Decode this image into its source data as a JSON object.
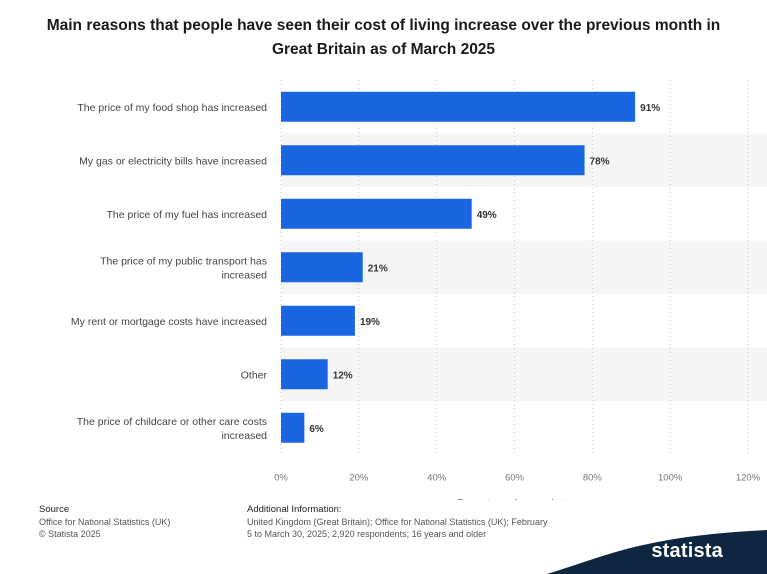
{
  "title": "Main reasons that people have seen their cost of living increase over the previous month in Great Britain as of March 2025",
  "chart_data": {
    "type": "bar",
    "orientation": "horizontal",
    "title": "Main reasons that people have seen their cost of living increase over the previous month in Great Britain as of March 2025",
    "categories": [
      "The price of my food shop has increased",
      "My gas or electricity bills have increased",
      "The price of my fuel has increased",
      "The price of my public transport has increased",
      "My rent or mortgage costs have increased",
      "Other",
      "The price of childcare or other care costs increased"
    ],
    "values": [
      91,
      78,
      49,
      21,
      19,
      12,
      6
    ],
    "value_labels": [
      "91%",
      "78%",
      "49%",
      "21%",
      "19%",
      "12%",
      "6%"
    ],
    "xlabel": "Percentage of respondents",
    "ylabel": "",
    "xlim": [
      0,
      120
    ],
    "xticks": [
      "0%",
      "20%",
      "40%",
      "60%",
      "80%",
      "100%",
      "120%"
    ],
    "bar_color": "#1a66e0",
    "grid": true,
    "legend": "none"
  },
  "footer": {
    "source_heading": "Source",
    "source_lines": [
      "Office for National Statistics (UK)",
      "© Statista 2025"
    ],
    "info_heading": "Additional Information:",
    "info_lines": [
      "United Kingdom (Great Britain); Office for National Statistics (UK); February",
      "5 to March 30, 2025; 2,920 respondents; 16 years and older"
    ]
  },
  "brand": {
    "name": "statista",
    "color": "#0f2640",
    "icon": "statista-logo-icon"
  }
}
